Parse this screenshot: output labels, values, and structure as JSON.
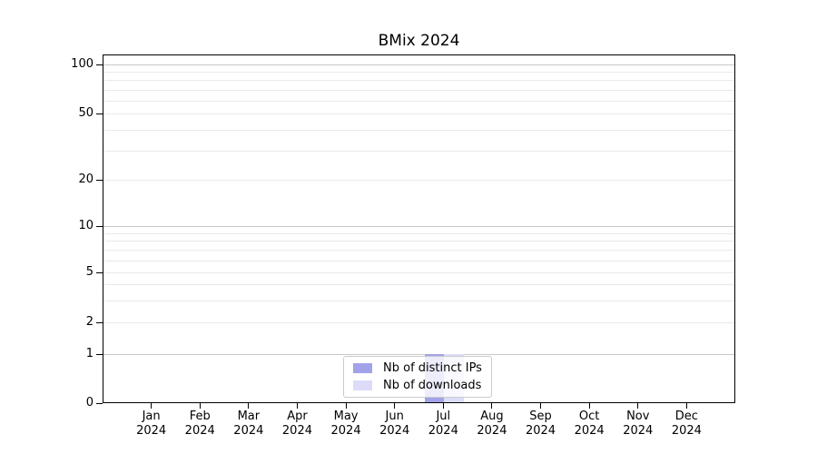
{
  "title": "BMix 2024",
  "chart_data": {
    "type": "bar",
    "title": "BMix 2024",
    "categories": [
      "Jan 2024",
      "Feb 2024",
      "Mar 2024",
      "Apr 2024",
      "May 2024",
      "Jun 2024",
      "Jul 2024",
      "Aug 2024",
      "Sep 2024",
      "Oct 2024",
      "Nov 2024",
      "Dec 2024"
    ],
    "months_short": [
      "Jan",
      "Feb",
      "Mar",
      "Apr",
      "May",
      "Jun",
      "Jul",
      "Aug",
      "Sep",
      "Oct",
      "Nov",
      "Dec"
    ],
    "year": "2024",
    "series": [
      {
        "name": "Nb of distinct IPs",
        "color": "#a2a2ea",
        "values": [
          0,
          0,
          0,
          0,
          0,
          0,
          1,
          0,
          0,
          0,
          0,
          0
        ]
      },
      {
        "name": "Nb of downloads",
        "color": "#dcdcf8",
        "values": [
          0,
          0,
          0,
          0,
          0,
          0,
          1,
          0,
          0,
          0,
          0,
          0
        ]
      }
    ],
    "yscale": "log-like",
    "yticks": [
      0,
      1,
      2,
      5,
      10,
      20,
      50,
      100
    ],
    "ytick_labels": [
      "0",
      "1",
      "2",
      "5",
      "10",
      "20",
      "50",
      "100"
    ],
    "minor_grid_values": [
      2,
      3,
      4,
      5,
      6,
      7,
      8,
      9,
      20,
      30,
      40,
      50,
      60,
      70,
      80,
      90
    ],
    "major_grid_values": [
      1,
      10,
      100
    ],
    "ylim": [
      0,
      126
    ],
    "grid": "horizontal major+minor",
    "legend_position": "lower center",
    "colors": {
      "spine": "#000000",
      "grid_major": "#c9c9c9",
      "grid_minor": "#e9e9e9",
      "legend_border": "#cccccc"
    }
  }
}
